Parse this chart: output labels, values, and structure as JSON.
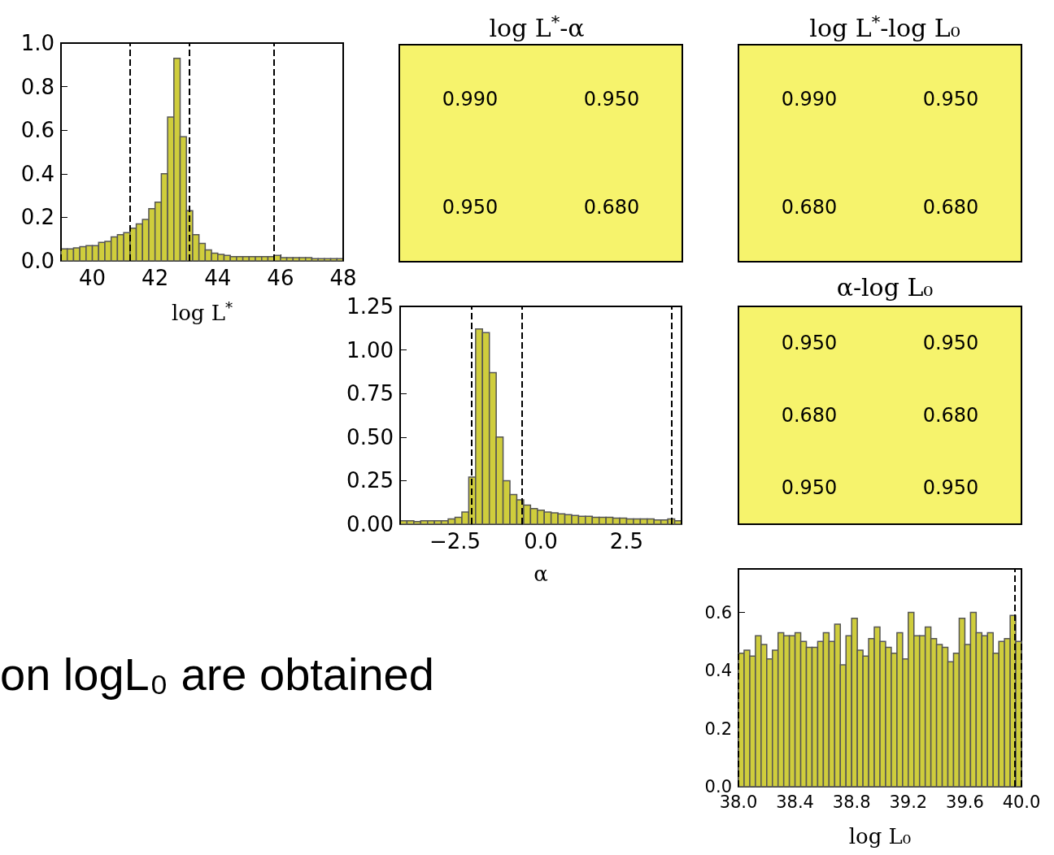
{
  "chart_data": [
    {
      "type": "histogram",
      "xlabel": "log L$^{*}$",
      "color": "#cfcd3c",
      "bins": [
        39.0,
        39.2,
        39.4,
        39.6,
        39.8,
        40.0,
        40.2,
        40.4,
        40.6,
        40.8,
        41.0,
        41.2,
        41.4,
        41.6,
        41.8,
        42.0,
        42.2,
        42.4,
        42.6,
        42.8,
        43.0,
        43.2,
        43.4,
        43.6,
        43.8,
        44.0,
        44.2,
        44.4,
        44.6,
        44.8,
        45.0,
        45.2,
        45.4,
        45.6,
        45.8,
        46.0,
        46.2,
        46.4,
        46.6,
        46.8,
        47.0,
        47.2,
        47.4,
        47.6,
        47.8,
        48.0
      ],
      "values": [
        0.055,
        0.055,
        0.06,
        0.065,
        0.07,
        0.07,
        0.085,
        0.09,
        0.11,
        0.12,
        0.13,
        0.15,
        0.17,
        0.19,
        0.24,
        0.27,
        0.4,
        0.66,
        0.93,
        0.57,
        0.23,
        0.12,
        0.08,
        0.05,
        0.035,
        0.03,
        0.025,
        0.02,
        0.02,
        0.02,
        0.02,
        0.02,
        0.02,
        0.02,
        0.025,
        0.015,
        0.015,
        0.015,
        0.015,
        0.015,
        0.01,
        0.01,
        0.01,
        0.01,
        0.01
      ],
      "xlim": [
        39,
        48
      ],
      "ylim": [
        0,
        1
      ],
      "xticks": [
        40,
        42,
        44,
        46,
        48
      ],
      "yticks": [
        {
          "value": 0,
          "label": "0.0"
        },
        {
          "value": 0.2,
          "label": "0.2"
        },
        {
          "value": 0.4,
          "label": "0.4"
        },
        {
          "value": 0.6,
          "label": "0.6"
        },
        {
          "value": 0.8,
          "label": "0.8"
        },
        {
          "value": 1,
          "label": "1.0"
        }
      ],
      "ref_lines": [
        {
          "axis": "x",
          "value": 39,
          "color": "#000000",
          "line_style": "dashed"
        },
        {
          "axis": "x",
          "value": 41.2,
          "color": "#000000",
          "line_style": "dashed"
        },
        {
          "axis": "x",
          "value": 43.1,
          "color": "#000000",
          "line_style": "dashed"
        },
        {
          "axis": "x",
          "value": 45.8,
          "color": "#000000",
          "line_style": "dashed"
        },
        {
          "axis": "x",
          "value": 48,
          "color": "#000000",
          "line_style": "dashed"
        }
      ]
    },
    {
      "type": "other",
      "title": "log L$^{*}$-α",
      "annotations": [
        "0.990",
        "0.950",
        "0.950",
        "0.680"
      ]
    },
    {
      "type": "other",
      "title": "log L$^{*}$-log L₀",
      "annotations": [
        "0.990",
        "0.950",
        "0.680",
        "0.680"
      ]
    },
    {
      "type": "histogram",
      "xlabel": "α",
      "color": "#cfcd3c",
      "bins": [
        -4.1,
        -3.9,
        -3.7,
        -3.5,
        -3.3,
        -3.1,
        -2.9,
        -2.7,
        -2.5,
        -2.3,
        -2.1,
        -1.9,
        -1.7,
        -1.5,
        -1.3,
        -1.1,
        -0.9,
        -0.7,
        -0.5,
        -0.3,
        -0.1,
        0.1,
        0.3,
        0.5,
        0.7,
        0.9,
        1.1,
        1.3,
        1.5,
        1.7,
        1.9,
        2.1,
        2.3,
        2.5,
        2.7,
        2.9,
        3.1,
        3.3,
        3.5,
        3.7,
        3.9,
        4.1
      ],
      "values": [
        0.02,
        0.02,
        0.015,
        0.02,
        0.02,
        0.02,
        0.02,
        0.03,
        0.04,
        0.07,
        0.27,
        1.12,
        1.1,
        0.87,
        0.5,
        0.25,
        0.17,
        0.14,
        0.11,
        0.09,
        0.08,
        0.07,
        0.065,
        0.06,
        0.055,
        0.05,
        0.045,
        0.045,
        0.04,
        0.04,
        0.04,
        0.035,
        0.035,
        0.03,
        0.03,
        0.03,
        0.03,
        0.025,
        0.025,
        0.03,
        0.02
      ],
      "xlim": [
        -4.1,
        4.1
      ],
      "ylim": [
        0,
        1.25
      ],
      "xticks": [
        {
          "value": -2.5,
          "label": "−2.5"
        },
        {
          "value": 0,
          "label": "0.0"
        },
        {
          "value": 2.5,
          "label": "2.5"
        }
      ],
      "yticks": [
        {
          "value": 0,
          "label": "0.00"
        },
        {
          "value": 0.25,
          "label": "0.25"
        },
        {
          "value": 0.5,
          "label": "0.50"
        },
        {
          "value": 0.75,
          "label": "0.75"
        },
        {
          "value": 1,
          "label": "1.00"
        },
        {
          "value": 1.25,
          "label": "1.25"
        }
      ],
      "ref_lines": [
        {
          "axis": "x",
          "value": -4.1,
          "color": "#000000",
          "line_style": "dashed"
        },
        {
          "axis": "x",
          "value": -2.02,
          "color": "#000000",
          "line_style": "dashed"
        },
        {
          "axis": "x",
          "value": -0.55,
          "color": "#000000",
          "line_style": "dashed"
        },
        {
          "axis": "x",
          "value": 3.8,
          "color": "#000000",
          "line_style": "dashed"
        },
        {
          "axis": "x",
          "value": 4.1,
          "color": "#000000",
          "line_style": "dashed"
        }
      ]
    },
    {
      "type": "other",
      "title": "α-log L₀",
      "annotations": [
        "0.950",
        "0.950",
        "0.680",
        "0.680",
        "0.950",
        "0.950"
      ]
    },
    {
      "type": "other",
      "annotations": [
        "on logL₀ are obtained"
      ]
    },
    {
      "type": "histogram",
      "xlabel": "log L₀",
      "color": "#cfcd3c",
      "bins": [
        38.0,
        38.04,
        38.08,
        38.12,
        38.16,
        38.2,
        38.24,
        38.28,
        38.32,
        38.36,
        38.4,
        38.44,
        38.48,
        38.52,
        38.56,
        38.6,
        38.64,
        38.68,
        38.72,
        38.76,
        38.8,
        38.84,
        38.88,
        38.92,
        38.96,
        39.0,
        39.04,
        39.08,
        39.12,
        39.16,
        39.2,
        39.24,
        39.28,
        39.32,
        39.36,
        39.4,
        39.44,
        39.48,
        39.52,
        39.56,
        39.6,
        39.64,
        39.68,
        39.72,
        39.76,
        39.8,
        39.84,
        39.88,
        39.92,
        39.96,
        40.0
      ],
      "values": [
        0.46,
        0.47,
        0.45,
        0.52,
        0.49,
        0.44,
        0.47,
        0.53,
        0.52,
        0.52,
        0.53,
        0.5,
        0.48,
        0.48,
        0.5,
        0.53,
        0.5,
        0.56,
        0.42,
        0.52,
        0.58,
        0.47,
        0.45,
        0.51,
        0.55,
        0.5,
        0.48,
        0.46,
        0.53,
        0.44,
        0.6,
        0.52,
        0.52,
        0.55,
        0.51,
        0.49,
        0.48,
        0.43,
        0.46,
        0.58,
        0.49,
        0.6,
        0.53,
        0.52,
        0.53,
        0.46,
        0.5,
        0.51,
        0.59,
        0.5
      ],
      "xlim": [
        38,
        40
      ],
      "ylim": [
        0,
        0.75
      ],
      "xticks": [
        {
          "value": 38,
          "label": "38.0"
        },
        {
          "value": 38.4,
          "label": "38.4"
        },
        {
          "value": 38.8,
          "label": "38.8"
        },
        {
          "value": 39.2,
          "label": "39.2"
        },
        {
          "value": 39.6,
          "label": "39.6"
        },
        {
          "value": 40,
          "label": "40.0"
        }
      ],
      "yticks": [
        {
          "value": 0,
          "label": "0.0"
        },
        {
          "value": 0.2,
          "label": "0.2"
        },
        {
          "value": 0.4,
          "label": "0.4"
        },
        {
          "value": 0.6,
          "label": "0.6"
        }
      ],
      "ref_lines": [
        {
          "axis": "x",
          "value": 38,
          "color": "#000000",
          "line_style": "dashed"
        },
        {
          "axis": "x",
          "value": 39.95,
          "color": "#000000",
          "line_style": "dashed"
        },
        {
          "axis": "x",
          "value": 40,
          "color": "#000000",
          "line_style": "dashed"
        }
      ]
    }
  ]
}
